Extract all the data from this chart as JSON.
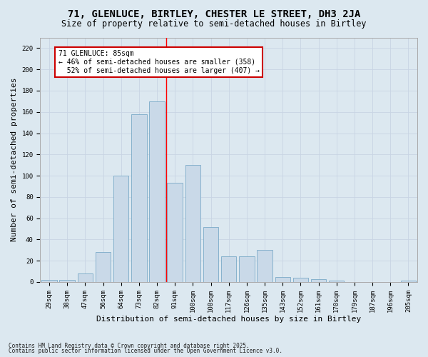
{
  "title": "71, GLENLUCE, BIRTLEY, CHESTER LE STREET, DH3 2JA",
  "subtitle": "Size of property relative to semi-detached houses in Birtley",
  "xlabel": "Distribution of semi-detached houses by size in Birtley",
  "ylabel": "Number of semi-detached properties",
  "categories": [
    "29sqm",
    "38sqm",
    "47sqm",
    "56sqm",
    "64sqm",
    "73sqm",
    "82sqm",
    "91sqm",
    "100sqm",
    "108sqm",
    "117sqm",
    "126sqm",
    "135sqm",
    "143sqm",
    "152sqm",
    "161sqm",
    "170sqm",
    "179sqm",
    "187sqm",
    "196sqm",
    "205sqm"
  ],
  "values": [
    2,
    2,
    8,
    28,
    100,
    158,
    170,
    93,
    110,
    52,
    24,
    24,
    30,
    5,
    4,
    3,
    1,
    0,
    0,
    0,
    1
  ],
  "bar_color": "#c9d9e8",
  "bar_edge_color": "#7aaac8",
  "grid_color": "#c8d4e4",
  "background_color": "#dce8f0",
  "property_label": "71 GLENLUCE: 85sqm",
  "pct_smaller": 46,
  "count_smaller": 358,
  "pct_larger": 52,
  "count_larger": 407,
  "annotation_box_color": "#ffffff",
  "annotation_box_edge": "#cc0000",
  "ylim": [
    0,
    230
  ],
  "yticks": [
    0,
    20,
    40,
    60,
    80,
    100,
    120,
    140,
    160,
    180,
    200,
    220
  ],
  "footer1": "Contains HM Land Registry data © Crown copyright and database right 2025.",
  "footer2": "Contains public sector information licensed under the Open Government Licence v3.0.",
  "title_fontsize": 10,
  "subtitle_fontsize": 8.5,
  "tick_fontsize": 6.5,
  "ylabel_fontsize": 8,
  "xlabel_fontsize": 8,
  "annotation_fontsize": 7,
  "footer_fontsize": 5.5
}
